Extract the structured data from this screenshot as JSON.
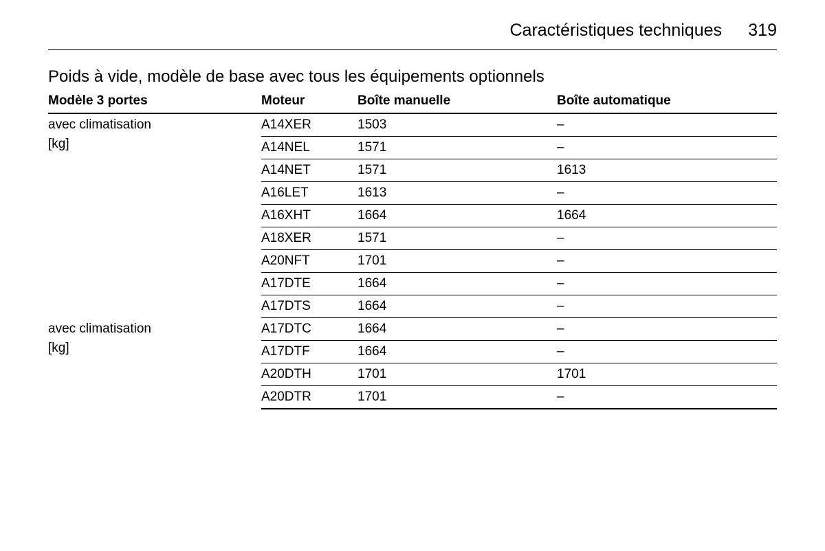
{
  "header": {
    "section_title": "Caractéristiques techniques",
    "page_number": "319"
  },
  "table": {
    "title": "Poids à vide, modèle de base avec tous les équipements optionnels",
    "columns": {
      "model": "Modèle 3 portes",
      "engine": "Moteur",
      "manual": "Boîte manuelle",
      "auto": "Boîte automatique"
    },
    "groups": [
      {
        "label": "avec climatisation",
        "unit": "[kg]",
        "rows": [
          {
            "engine": "A14XER",
            "manual": "1503",
            "auto": "–"
          },
          {
            "engine": "A14NEL",
            "manual": "1571",
            "auto": "–"
          },
          {
            "engine": "A14NET",
            "manual": "1571",
            "auto": "1613"
          },
          {
            "engine": "A16LET",
            "manual": "1613",
            "auto": "–"
          },
          {
            "engine": "A16XHT",
            "manual": "1664",
            "auto": "1664"
          },
          {
            "engine": "A18XER",
            "manual": "1571",
            "auto": "–"
          },
          {
            "engine": "A20NFT",
            "manual": "1701",
            "auto": "–"
          },
          {
            "engine": "A17DTE",
            "manual": "1664",
            "auto": "–"
          },
          {
            "engine": "A17DTS",
            "manual": "1664",
            "auto": "–"
          }
        ]
      },
      {
        "label": "avec climatisation",
        "unit": "[kg]",
        "rows": [
          {
            "engine": "A17DTC",
            "manual": "1664",
            "auto": "–"
          },
          {
            "engine": "A17DTF",
            "manual": "1664",
            "auto": "–"
          },
          {
            "engine": "A20DTH",
            "manual": "1701",
            "auto": "1701"
          },
          {
            "engine": "A20DTR",
            "manual": "1701",
            "auto": "–"
          }
        ]
      }
    ]
  }
}
